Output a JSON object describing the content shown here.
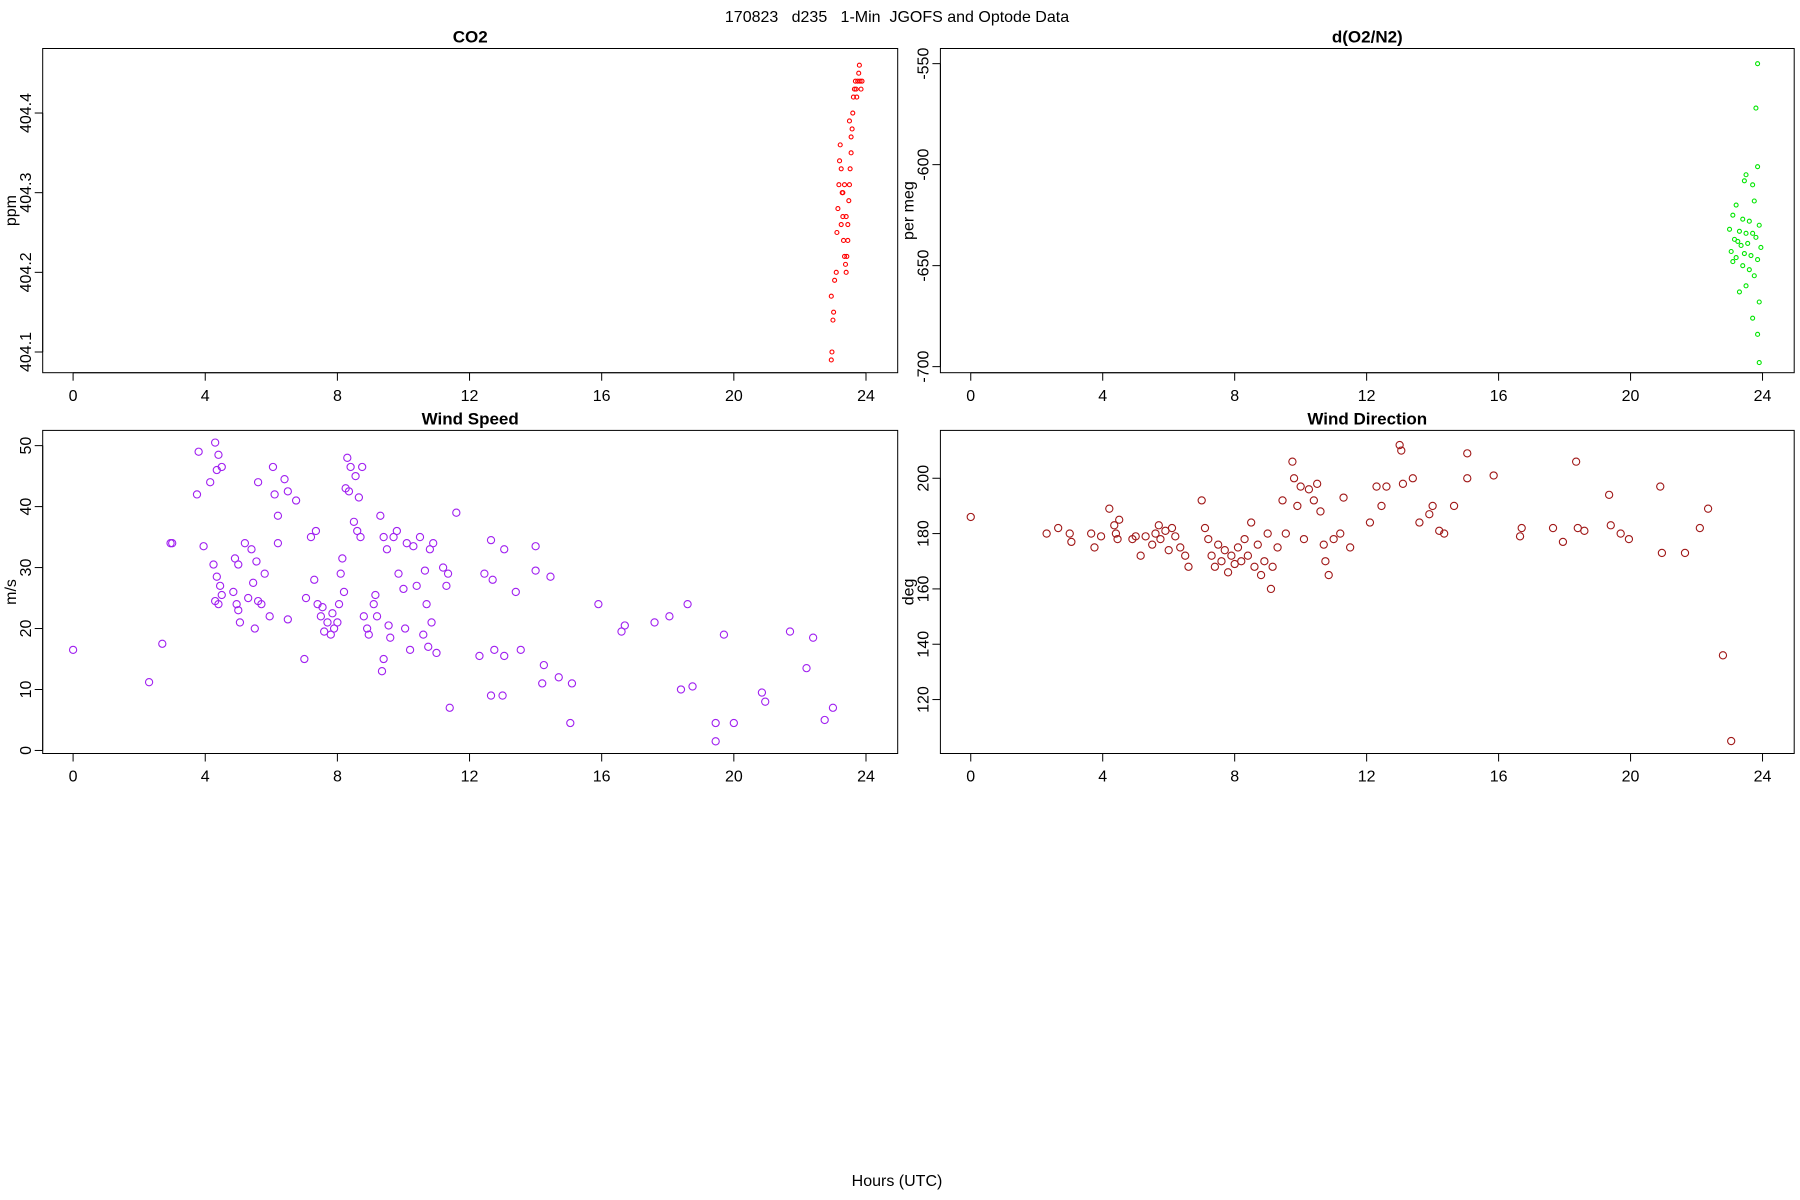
{
  "title": "170823   d235   1-Min  JGOFS and Optode Data",
  "xlabel": "Hours (UTC)",
  "chart_data": [
    {
      "type": "scatter",
      "title": "CO2",
      "ylabel": "ppm",
      "color": "#ff0000",
      "xlim": [
        -0.92,
        24.96
      ],
      "xticks": [
        0,
        4,
        8,
        12,
        16,
        20,
        24
      ],
      "ylim": [
        404.074,
        404.481
      ],
      "yticks": [
        404.1,
        404.2,
        404.3,
        404.4
      ],
      "x": [
        22.95,
        22.97,
        23.0,
        23.02,
        22.95,
        23.05,
        23.1,
        23.12,
        23.15,
        23.18,
        23.2,
        23.22,
        23.25,
        23.28,
        23.3,
        23.32,
        23.35,
        23.38,
        23.4,
        23.42,
        23.45,
        23.48,
        23.5,
        23.52,
        23.55,
        23.58,
        23.6,
        23.62,
        23.65,
        23.68,
        23.7,
        23.72,
        23.75,
        23.78,
        23.8,
        23.82,
        23.85,
        23.88,
        23.3,
        23.25,
        23.35,
        23.4,
        23.45,
        23.5,
        23.55
      ],
      "values": [
        404.09,
        404.1,
        404.14,
        404.15,
        404.17,
        404.19,
        404.2,
        404.25,
        404.28,
        404.31,
        404.34,
        404.36,
        404.33,
        404.3,
        404.27,
        404.24,
        404.22,
        404.21,
        404.2,
        404.22,
        404.26,
        404.29,
        404.31,
        404.33,
        404.35,
        404.38,
        404.4,
        404.42,
        404.43,
        404.44,
        404.43,
        404.42,
        404.44,
        404.45,
        404.46,
        404.44,
        404.43,
        404.44,
        404.3,
        404.26,
        404.31,
        404.27,
        404.24,
        404.39,
        404.37
      ]
    },
    {
      "type": "scatter",
      "title": "d(O2/N2)",
      "ylabel": "per meg",
      "color": "#00e600",
      "xlim": [
        -0.92,
        24.96
      ],
      "xticks": [
        0,
        4,
        8,
        12,
        16,
        20,
        24
      ],
      "ylim": [
        -703,
        -542.5
      ],
      "yticks": [
        -700,
        -650,
        -600,
        -550
      ],
      "x": [
        23.85,
        23.8,
        23.85,
        23.5,
        23.45,
        23.7,
        23.75,
        23.2,
        23.1,
        23.4,
        23.6,
        23.9,
        23.0,
        23.3,
        23.5,
        23.7,
        23.8,
        23.15,
        23.25,
        23.55,
        23.35,
        23.95,
        23.05,
        23.45,
        23.65,
        23.2,
        23.85,
        23.1,
        23.4,
        23.6,
        23.75,
        23.5,
        23.3,
        23.9,
        23.7,
        23.85,
        23.9
      ],
      "values": [
        -550,
        -572,
        -601,
        -605,
        -608,
        -610,
        -618,
        -620,
        -625,
        -627,
        -628,
        -630,
        -632,
        -633,
        -634,
        -634,
        -636,
        -637,
        -638,
        -639,
        -640,
        -641,
        -643,
        -644,
        -645,
        -646,
        -647,
        -648,
        -650,
        -652,
        -655,
        -660,
        -663,
        -668,
        -676,
        -684,
        -698
      ]
    },
    {
      "type": "scatter",
      "title": "Wind Speed",
      "ylabel": "m/s",
      "color": "#a020f0",
      "xlim": [
        -0.92,
        24.96
      ],
      "xticks": [
        0,
        4,
        8,
        12,
        16,
        20,
        24
      ],
      "ylim": [
        -0.5,
        52.5
      ],
      "yticks": [
        0,
        10,
        20,
        30,
        40,
        50
      ],
      "x": [
        0,
        2.3,
        2.7,
        2.95,
        3.0,
        3.75,
        3.8,
        3.95,
        4.3,
        4.4,
        4.5,
        4.35,
        4.15,
        4.25,
        4.35,
        4.45,
        4.3,
        4.4,
        4.5,
        4.9,
        5.0,
        4.85,
        5.0,
        5.05,
        4.95,
        5.2,
        5.3,
        5.4,
        5.45,
        5.5,
        5.55,
        5.6,
        5.7,
        5.8,
        5.95,
        5.6,
        6.05,
        6.1,
        6.2,
        6.2,
        6.4,
        6.5,
        6.5,
        6.75,
        7.0,
        7.05,
        7.2,
        7.3,
        7.35,
        7.4,
        7.5,
        7.55,
        7.6,
        7.7,
        7.8,
        7.9,
        7.85,
        8.0,
        8.05,
        8.1,
        8.15,
        8.2,
        8.25,
        8.3,
        8.35,
        8.4,
        8.5,
        8.55,
        8.6,
        8.65,
        8.7,
        8.75,
        8.8,
        8.9,
        8.95,
        9.1,
        9.15,
        9.2,
        9.3,
        9.4,
        9.35,
        9.4,
        9.5,
        9.55,
        9.6,
        9.7,
        9.8,
        9.85,
        10.0,
        10.05,
        10.1,
        10.2,
        10.3,
        10.4,
        10.5,
        10.6,
        10.65,
        10.7,
        10.75,
        10.8,
        10.9,
        10.85,
        11.0,
        11.2,
        11.3,
        11.35,
        11.4,
        11.6,
        12.3,
        12.45,
        12.65,
        12.7,
        12.75,
        12.65,
        13.0,
        13.05,
        13.05,
        13.4,
        13.55,
        14.0,
        14.0,
        14.2,
        14.25,
        14.45,
        14.7,
        15.1,
        15.05,
        15.9,
        16.6,
        16.7,
        17.6,
        18.05,
        18.4,
        18.6,
        18.75,
        19.45,
        19.45,
        19.7,
        20.0,
        20.85,
        20.95,
        21.7,
        22.2,
        22.4,
        22.75,
        23.0
      ],
      "values": [
        16.5,
        11.2,
        17.5,
        34,
        34,
        42,
        49,
        33.5,
        50.5,
        48.5,
        46.5,
        46,
        44,
        30.5,
        28.5,
        27,
        24.5,
        24,
        25.5,
        31.5,
        30.5,
        26,
        23,
        21,
        24,
        34,
        25,
        33,
        27.5,
        20,
        31,
        44,
        24,
        29,
        22,
        24.5,
        46.5,
        42,
        38.5,
        34,
        44.5,
        42.5,
        21.5,
        41,
        15,
        25,
        35,
        28,
        36,
        24,
        22,
        23.5,
        19.5,
        21,
        19,
        20,
        22.5,
        21,
        24,
        29,
        31.5,
        26,
        43,
        48,
        42.5,
        46.5,
        37.5,
        45,
        36,
        41.5,
        35,
        46.5,
        22,
        20,
        19,
        24,
        25.5,
        22,
        38.5,
        35,
        13,
        15,
        33,
        20.5,
        18.5,
        35,
        36,
        29,
        26.5,
        20,
        34,
        16.5,
        33.5,
        27,
        35,
        19,
        29.5,
        24,
        17,
        33,
        34,
        21,
        16,
        30,
        27,
        29,
        7,
        39,
        15.5,
        29,
        34.5,
        28,
        16.5,
        9,
        9,
        15.5,
        33,
        26,
        16.5,
        33.5,
        29.5,
        11,
        14,
        28.5,
        12,
        11,
        4.5,
        24,
        19.5,
        20.5,
        21,
        22,
        10,
        24,
        10.5,
        4.5,
        1.5,
        19,
        4.5,
        9.5,
        8,
        19.5,
        13.5,
        18.5,
        5,
        7
      ]
    },
    {
      "type": "scatter",
      "title": "Wind Direction",
      "ylabel": "deg",
      "color": "#a01818",
      "xlim": [
        -0.92,
        24.96
      ],
      "xticks": [
        0,
        4,
        8,
        12,
        16,
        20,
        24
      ],
      "ylim": [
        100.5,
        217.3
      ],
      "yticks": [
        120,
        140,
        160,
        180,
        200
      ],
      "x": [
        0,
        2.3,
        2.65,
        3.0,
        3.05,
        3.65,
        3.75,
        3.95,
        4.2,
        4.35,
        4.5,
        4.4,
        4.45,
        4.9,
        5.0,
        5.15,
        5.3,
        5.5,
        5.6,
        5.7,
        5.75,
        5.9,
        6.0,
        6.1,
        6.2,
        6.35,
        6.5,
        6.6,
        7.0,
        7.1,
        7.2,
        7.3,
        7.4,
        7.5,
        7.6,
        7.7,
        7.8,
        7.9,
        8.0,
        8.1,
        8.2,
        8.3,
        8.4,
        8.5,
        8.6,
        8.7,
        8.8,
        8.9,
        9.0,
        9.1,
        9.15,
        9.3,
        9.45,
        9.55,
        9.75,
        9.8,
        9.9,
        10.0,
        10.1,
        10.25,
        10.4,
        10.5,
        10.6,
        10.7,
        10.75,
        10.85,
        11.0,
        11.2,
        11.3,
        11.5,
        12.1,
        12.3,
        12.45,
        12.6,
        13.0,
        13.05,
        13.1,
        13.4,
        13.6,
        13.9,
        14.0,
        14.2,
        14.35,
        14.65,
        15.05,
        15.05,
        15.85,
        16.65,
        16.7,
        17.65,
        17.95,
        18.35,
        18.4,
        18.6,
        19.35,
        19.4,
        19.7,
        19.95,
        20.9,
        20.95,
        21.65,
        22.1,
        22.35,
        22.8,
        23.05
      ],
      "values": [
        186,
        180,
        182,
        180,
        177,
        180,
        175,
        179,
        189,
        183,
        185,
        180,
        178,
        178,
        179,
        172,
        179,
        176,
        180,
        183,
        178,
        181,
        174,
        182,
        179,
        175,
        172,
        168,
        192,
        182,
        178,
        172,
        168,
        176,
        170,
        174,
        166,
        172,
        169,
        175,
        170,
        178,
        172,
        184,
        168,
        176,
        165,
        170,
        180,
        160,
        168,
        175,
        192,
        180,
        206,
        200,
        190,
        197,
        178,
        196,
        192,
        198,
        188,
        176,
        170,
        165,
        178,
        180,
        193,
        175,
        184,
        197,
        190,
        197,
        212,
        210,
        198,
        200,
        184,
        187,
        190,
        181,
        180,
        190,
        209,
        200,
        201,
        179,
        182,
        182,
        177,
        206,
        182,
        181,
        194,
        183,
        180,
        178,
        197,
        173,
        173,
        182,
        189,
        136,
        105
      ]
    }
  ]
}
